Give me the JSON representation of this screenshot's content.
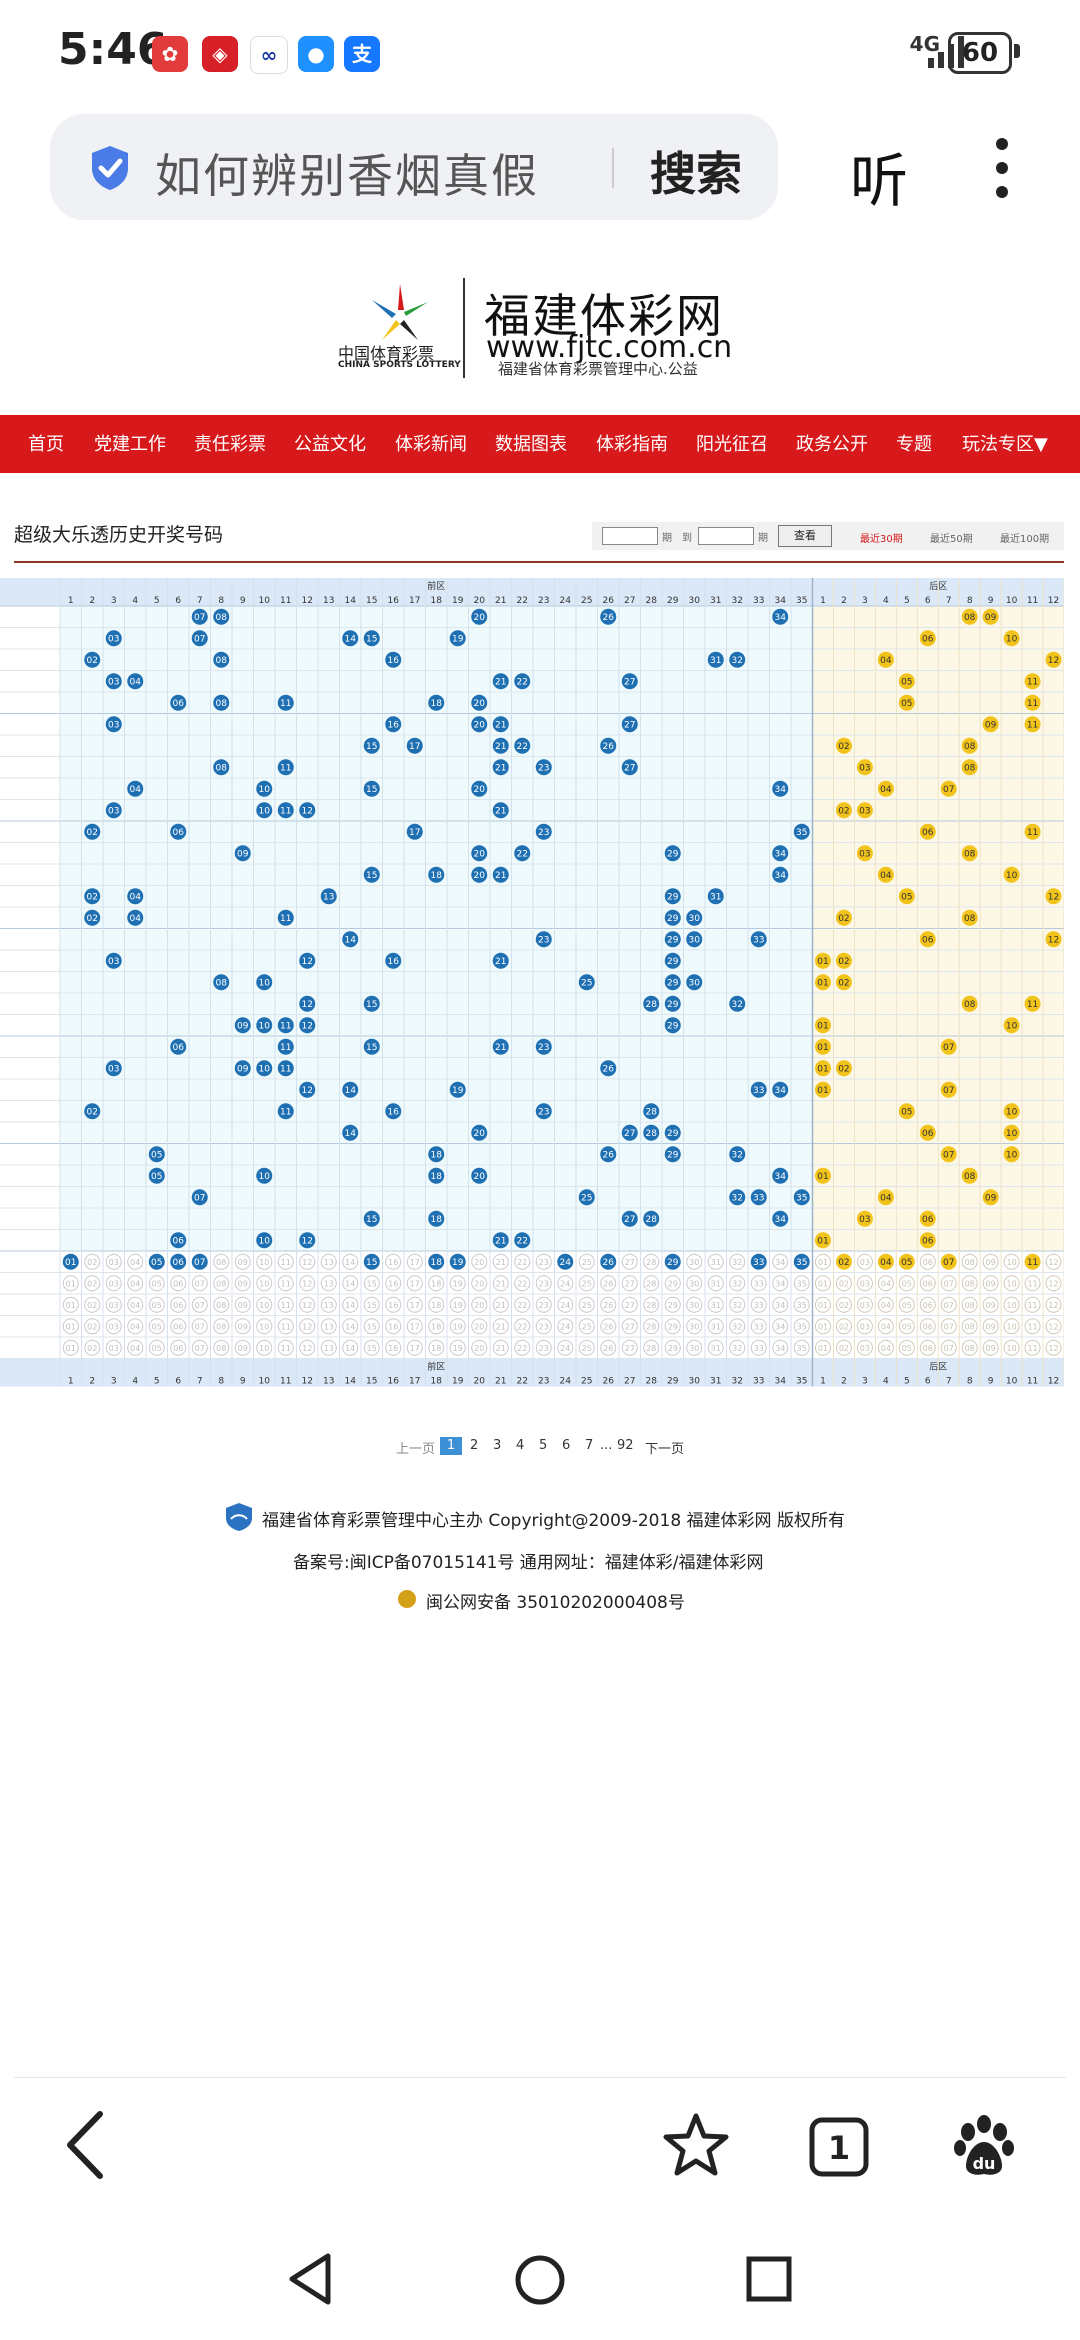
{
  "status_bar": {
    "time": "5:46",
    "network": "4G",
    "battery": "60"
  },
  "browser": {
    "query": "如何辨别香烟真假",
    "search_button": "搜索",
    "listen": "听"
  },
  "site": {
    "logo_cn": "中国体育彩票",
    "logo_en": "CHINA SPORTS LOTTERY",
    "title": "福建体彩网",
    "url": "www.fjtc.com.cn",
    "subtitle": "福建省体育彩票管理中心.公益"
  },
  "nav": [
    "首页",
    "党建工作",
    "责任彩票",
    "公益文化",
    "体彩新闻",
    "数据图表",
    "体彩指南",
    "阳光征召",
    "政务公开",
    "专题",
    "玩法专区▼"
  ],
  "page": {
    "title": "超级大乐透历史开奖号码",
    "filter": {
      "label_period": "期",
      "label_to": "到",
      "button": "查看",
      "recent": [
        "最近30期",
        "最近50期",
        "最近100期"
      ]
    }
  },
  "table": {
    "front_header": "前区",
    "back_header": "后区",
    "rows": [
      {
        "front": [
          7,
          8,
          20,
          26,
          34
        ],
        "back": [
          8,
          9
        ]
      },
      {
        "front": [
          3,
          7,
          14,
          15,
          19
        ],
        "back": [
          6,
          10
        ]
      },
      {
        "front": [
          2,
          8,
          16,
          31,
          32
        ],
        "back": [
          4,
          12
        ]
      },
      {
        "front": [
          3,
          4,
          21,
          22,
          27
        ],
        "back": [
          5,
          11
        ]
      },
      {
        "front": [
          6,
          8,
          11,
          18,
          20
        ],
        "back": [
          5,
          11
        ]
      },
      {
        "front": [
          3,
          16,
          20,
          21,
          27
        ],
        "back": [
          9,
          11
        ]
      },
      {
        "front": [
          15,
          17,
          21,
          22,
          26
        ],
        "back": [
          2,
          8
        ]
      },
      {
        "front": [
          8,
          11,
          21,
          23,
          27
        ],
        "back": [
          3,
          8
        ]
      },
      {
        "front": [
          4,
          10,
          15,
          20,
          34
        ],
        "back": [
          4,
          7
        ]
      },
      {
        "front": [
          3,
          10,
          11,
          12,
          21
        ],
        "back": [
          2,
          3
        ]
      },
      {
        "front": [
          2,
          6,
          17,
          23,
          35
        ],
        "back": [
          6,
          11
        ]
      },
      {
        "front": [
          9,
          20,
          22,
          29,
          34
        ],
        "back": [
          3,
          8
        ]
      },
      {
        "front": [
          15,
          18,
          20,
          21,
          34
        ],
        "back": [
          4,
          10
        ]
      },
      {
        "front": [
          2,
          4,
          13,
          29,
          31
        ],
        "back": [
          5,
          12
        ]
      },
      {
        "front": [
          2,
          4,
          11,
          29,
          30
        ],
        "back": [
          2,
          8
        ]
      },
      {
        "front": [
          14,
          23,
          29,
          30,
          33
        ],
        "back": [
          6,
          12
        ]
      },
      {
        "front": [
          3,
          12,
          16,
          21,
          29
        ],
        "back": [
          1,
          2
        ]
      },
      {
        "front": [
          8,
          10,
          25,
          29,
          30
        ],
        "back": [
          1,
          2
        ]
      },
      {
        "front": [
          12,
          15,
          28,
          29,
          32
        ],
        "back": [
          8,
          11
        ]
      },
      {
        "front": [
          9,
          10,
          11,
          12,
          29
        ],
        "back": [
          1,
          10
        ]
      },
      {
        "front": [
          6,
          11,
          15,
          21,
          23
        ],
        "back": [
          1,
          7
        ]
      },
      {
        "front": [
          3,
          9,
          10,
          11,
          26
        ],
        "back": [
          1,
          2
        ]
      },
      {
        "front": [
          12,
          14,
          19,
          33,
          34
        ],
        "back": [
          1,
          7
        ]
      },
      {
        "front": [
          2,
          11,
          16,
          23,
          28
        ],
        "back": [
          5,
          10
        ]
      },
      {
        "front": [
          14,
          20,
          27,
          28,
          29
        ],
        "back": [
          6,
          10
        ]
      },
      {
        "front": [
          5,
          18,
          26,
          29,
          32
        ],
        "back": [
          7,
          10
        ]
      },
      {
        "front": [
          5,
          10,
          18,
          20,
          34
        ],
        "back": [
          1,
          8
        ]
      },
      {
        "front": [
          7,
          25,
          32,
          33,
          35
        ],
        "back": [
          4,
          9
        ]
      },
      {
        "front": [
          15,
          18,
          27,
          28,
          34
        ],
        "back": [
          3,
          6
        ]
      },
      {
        "front": [
          6,
          10,
          12,
          21,
          22
        ],
        "back": [
          1,
          6
        ]
      }
    ],
    "select_front": [
      1,
      5,
      6,
      7,
      15,
      18,
      19,
      24,
      26,
      29,
      33,
      35
    ],
    "select_back": [
      2,
      4,
      5,
      7,
      11
    ]
  },
  "pagination": {
    "prev": "上一页",
    "pages": [
      "1",
      "2",
      "3",
      "4",
      "5",
      "6",
      "7",
      "...",
      "92"
    ],
    "next": "下一页"
  },
  "footer": {
    "line1": "福建省体育彩票管理中心主办 Copyright@2009-2018 福建体彩网 版权所有",
    "line2": "备案号:闽ICP备07015141号    通用网址：福建体彩/福建体彩网",
    "line3": "闽公网安备 35010202000408号"
  },
  "colors": {
    "nav_red": "#d7191c",
    "ball_blue": "#1f6fb3",
    "ball_yellow": "#f2c31a",
    "front_bg": "#eefafc",
    "back_bg": "#fdf8e6"
  }
}
